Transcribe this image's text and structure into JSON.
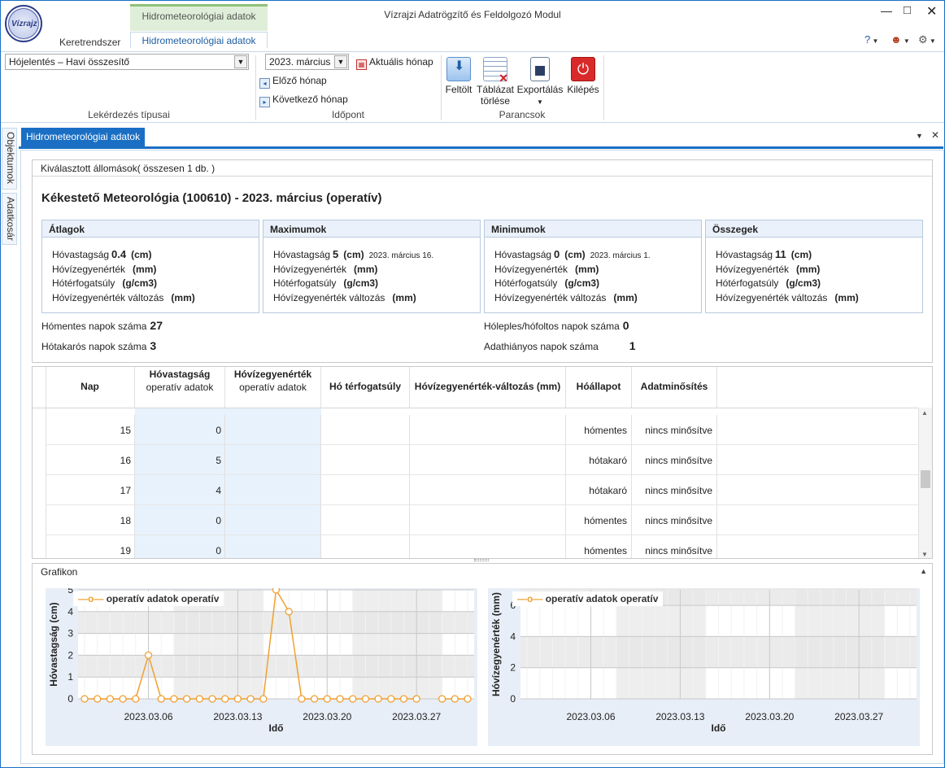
{
  "app": {
    "title": "Vízrajzi Adatrögzítő és Feldolgozó Modul",
    "logo_text": "Vízrajz",
    "context_tab": "Hidrometeorológiai adatok",
    "tabs": [
      "Keretrendszer",
      "Hidrometeorológiai adatok"
    ],
    "help_icon": "?"
  },
  "ribbon": {
    "query_type": "Hójelentés – Havi összesítő",
    "query_group": "Lekérdezés típusai",
    "month_value": "2023. március",
    "current_month": "Aktuális hónap",
    "prev_month": "Előző hónap",
    "next_month": "Következő hónap",
    "time_group": "Időpont",
    "cmd_load": "Feltölt",
    "cmd_clear_l1": "Táblázat",
    "cmd_clear_l2": "törlése",
    "cmd_export": "Exportálás",
    "cmd_exit": "Kilépés",
    "cmd_group": "Parancsok"
  },
  "side_tabs": [
    "Objektumok",
    "Adatkosár"
  ],
  "doc_tab": "Hidrometeorológiai adatok",
  "selected": "Kiválasztott állomások( összesen 1 db. )",
  "station_title": "Kékestető Meteorológia (100610) - 2023. március (operatív)",
  "boxes": [
    {
      "title": "Átlagok",
      "rows": [
        {
          "label": "Hóvastagság",
          "value": "0.4",
          "unit": "(cm)",
          "date": ""
        },
        {
          "label": "Hóvízegyenérték",
          "value": "",
          "unit": "(mm)",
          "date": ""
        },
        {
          "label": "Hótérfogatsúly",
          "value": "",
          "unit": "(g/cm3)",
          "date": ""
        },
        {
          "label": "Hóvízegyenérték változás",
          "value": "",
          "unit": "(mm)",
          "date": ""
        }
      ]
    },
    {
      "title": "Maximumok",
      "rows": [
        {
          "label": "Hóvastagság",
          "value": "5",
          "unit": "(cm)",
          "date": "2023. március 16."
        },
        {
          "label": "Hóvízegyenérték",
          "value": "",
          "unit": "(mm)",
          "date": ""
        },
        {
          "label": "Hótérfogatsúly",
          "value": "",
          "unit": "(g/cm3)",
          "date": ""
        },
        {
          "label": "Hóvízegyenérték változás",
          "value": "",
          "unit": "(mm)",
          "date": ""
        }
      ]
    },
    {
      "title": "Minimumok",
      "rows": [
        {
          "label": "Hóvastagság",
          "value": "0",
          "unit": "(cm)",
          "date": "2023. március 1."
        },
        {
          "label": "Hóvízegyenérték",
          "value": "",
          "unit": "(mm)",
          "date": ""
        },
        {
          "label": "Hótérfogatsúly",
          "value": "",
          "unit": "(g/cm3)",
          "date": ""
        },
        {
          "label": "Hóvízegyenérték változás",
          "value": "",
          "unit": "(mm)",
          "date": ""
        }
      ]
    },
    {
      "title": "Összegek",
      "rows": [
        {
          "label": "Hóvastagság",
          "value": "11",
          "unit": "(cm)",
          "date": ""
        },
        {
          "label": "Hóvízegyenérték",
          "value": "",
          "unit": "(mm)",
          "date": ""
        },
        {
          "label": "Hótérfogatsúly",
          "value": "",
          "unit": "(g/cm3)",
          "date": ""
        },
        {
          "label": "Hóvízegyenérték változás",
          "value": "",
          "unit": "(mm)",
          "date": ""
        }
      ]
    }
  ],
  "counts": {
    "snowfree_label": "Hómentes napok száma",
    "snowfree": "27",
    "covered_label": "Hótakarós napok száma",
    "covered": "3",
    "patchy_label": "Hóleples/hófoltos napok száma",
    "patchy": "0",
    "missing_label": "Adathiányos napok száma",
    "missing": "1"
  },
  "table": {
    "headers": [
      {
        "title": "Nap",
        "sub": ""
      },
      {
        "title": "Hóvastagság",
        "sub": "operatív adatok"
      },
      {
        "title": "Hóvízegyenérték",
        "sub": "operatív adatok"
      },
      {
        "title": "Hó térfogatsúly",
        "sub": ""
      },
      {
        "title": "Hóvízegyenérték-változás (mm)",
        "sub": ""
      },
      {
        "title": "Hóállapot",
        "sub": ""
      },
      {
        "title": "Adatminősítés",
        "sub": ""
      }
    ],
    "rows": [
      {
        "day": "15",
        "depth": "0",
        "swe": "",
        "dens": "",
        "chg": "",
        "state": "hómentes",
        "qual": "nincs minősítve"
      },
      {
        "day": "16",
        "depth": "5",
        "swe": "",
        "dens": "",
        "chg": "",
        "state": "hótakaró",
        "qual": "nincs minősítve"
      },
      {
        "day": "17",
        "depth": "4",
        "swe": "",
        "dens": "",
        "chg": "",
        "state": "hótakaró",
        "qual": "nincs minősítve"
      },
      {
        "day": "18",
        "depth": "0",
        "swe": "",
        "dens": "",
        "chg": "",
        "state": "hómentes",
        "qual": "nincs minősítve"
      },
      {
        "day": "19",
        "depth": "0",
        "swe": "",
        "dens": "",
        "chg": "",
        "state": "hómentes",
        "qual": "nincs minősítve"
      }
    ]
  },
  "grafikon": "Grafikon",
  "chart_data": [
    {
      "type": "line",
      "legend": "operatív adatok operatív",
      "xlabel": "Idő",
      "ylabel": "Hóvastagság (cm)",
      "ylim": [
        0,
        5
      ],
      "yticks": [
        "0",
        "1",
        "2",
        "3",
        "4",
        "5"
      ],
      "xticks": [
        "2023.03.06",
        "2023.03.13",
        "2023.03.20",
        "2023.03.27"
      ],
      "x": [
        "2023.03.01",
        "2023.03.02",
        "2023.03.03",
        "2023.03.04",
        "2023.03.05",
        "2023.03.06",
        "2023.03.07",
        "2023.03.08",
        "2023.03.09",
        "2023.03.10",
        "2023.03.11",
        "2023.03.12",
        "2023.03.13",
        "2023.03.14",
        "2023.03.15",
        "2023.03.16",
        "2023.03.17",
        "2023.03.18",
        "2023.03.19",
        "2023.03.20",
        "2023.03.21",
        "2023.03.22",
        "2023.03.23",
        "2023.03.24",
        "2023.03.25",
        "2023.03.26",
        "2023.03.27",
        "2023.03.28",
        "2023.03.29",
        "2023.03.30",
        "2023.03.31"
      ],
      "values": [
        0,
        0,
        0,
        0,
        0,
        2,
        0,
        0,
        0,
        0,
        0,
        0,
        0,
        0,
        0,
        5,
        4,
        0,
        0,
        0,
        0,
        0,
        0,
        0,
        0,
        0,
        0,
        null,
        0,
        0,
        0
      ],
      "color": "#f0a030"
    },
    {
      "type": "line",
      "legend": "operatív adatok operatív",
      "xlabel": "Idő",
      "ylabel": "Hóvízegyenérték (mm)",
      "ylim": [
        0,
        7
      ],
      "yticks": [
        "0",
        "2",
        "4",
        "6"
      ],
      "xticks": [
        "2023.03.06",
        "2023.03.13",
        "2023.03.20",
        "2023.03.27"
      ],
      "values": [],
      "color": "#f0a030"
    }
  ]
}
